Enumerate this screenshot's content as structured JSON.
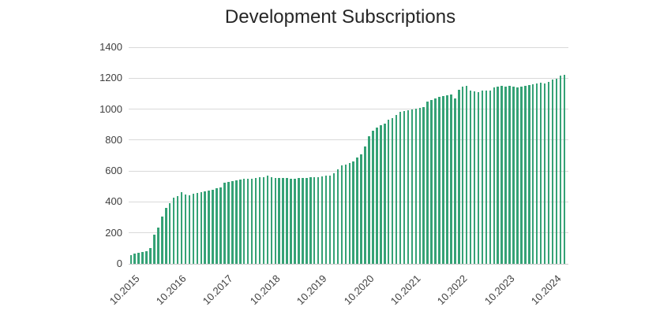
{
  "chart_data": {
    "type": "bar",
    "title": "Development Subscriptions",
    "xlabel": "",
    "ylabel": "",
    "x_start": "10.2015",
    "x_interval": "monthly",
    "values": [
      54,
      68,
      73,
      76,
      83,
      103,
      186,
      232,
      308,
      364,
      392,
      430,
      440,
      465,
      450,
      442,
      452,
      458,
      462,
      470,
      475,
      480,
      488,
      496,
      522,
      529,
      536,
      542,
      546,
      549,
      550,
      552,
      556,
      558,
      562,
      570,
      560,
      557,
      555,
      553,
      553,
      551,
      551,
      553,
      554,
      556,
      558,
      560,
      562,
      565,
      568,
      572,
      588,
      612,
      635,
      642,
      652,
      662,
      685,
      710,
      760,
      823,
      861,
      881,
      897,
      908,
      933,
      940,
      962,
      985,
      990,
      995,
      1000,
      1005,
      1010,
      1015,
      1047,
      1058,
      1068,
      1078,
      1085,
      1090,
      1094,
      1068,
      1124,
      1144,
      1150,
      1120,
      1115,
      1112,
      1118,
      1120,
      1122,
      1140,
      1148,
      1150,
      1145,
      1150,
      1148,
      1140,
      1145,
      1150,
      1155,
      1160,
      1165,
      1170,
      1168,
      1177,
      1190,
      1196,
      1215,
      1222
    ],
    "x_tick_labels": [
      "10.2015",
      "10.2016",
      "10.2017",
      "10.2018",
      "10.2019",
      "10.2020",
      "10.2021",
      "10.2022",
      "10.2023",
      "10.2024"
    ],
    "x_tick_every": 12,
    "y_ticks": [
      0,
      200,
      400,
      600,
      800,
      1000,
      1200,
      1400
    ],
    "ylim": [
      0,
      1400
    ],
    "grid": "horizontal",
    "legend": "none",
    "colors": {
      "bar": "#35A276",
      "gridline": "#D9D9D9",
      "axis_line": "#C9C9C9",
      "title_text": "#262626",
      "tick_text": "#404040",
      "background": "#FFFFFF"
    }
  }
}
